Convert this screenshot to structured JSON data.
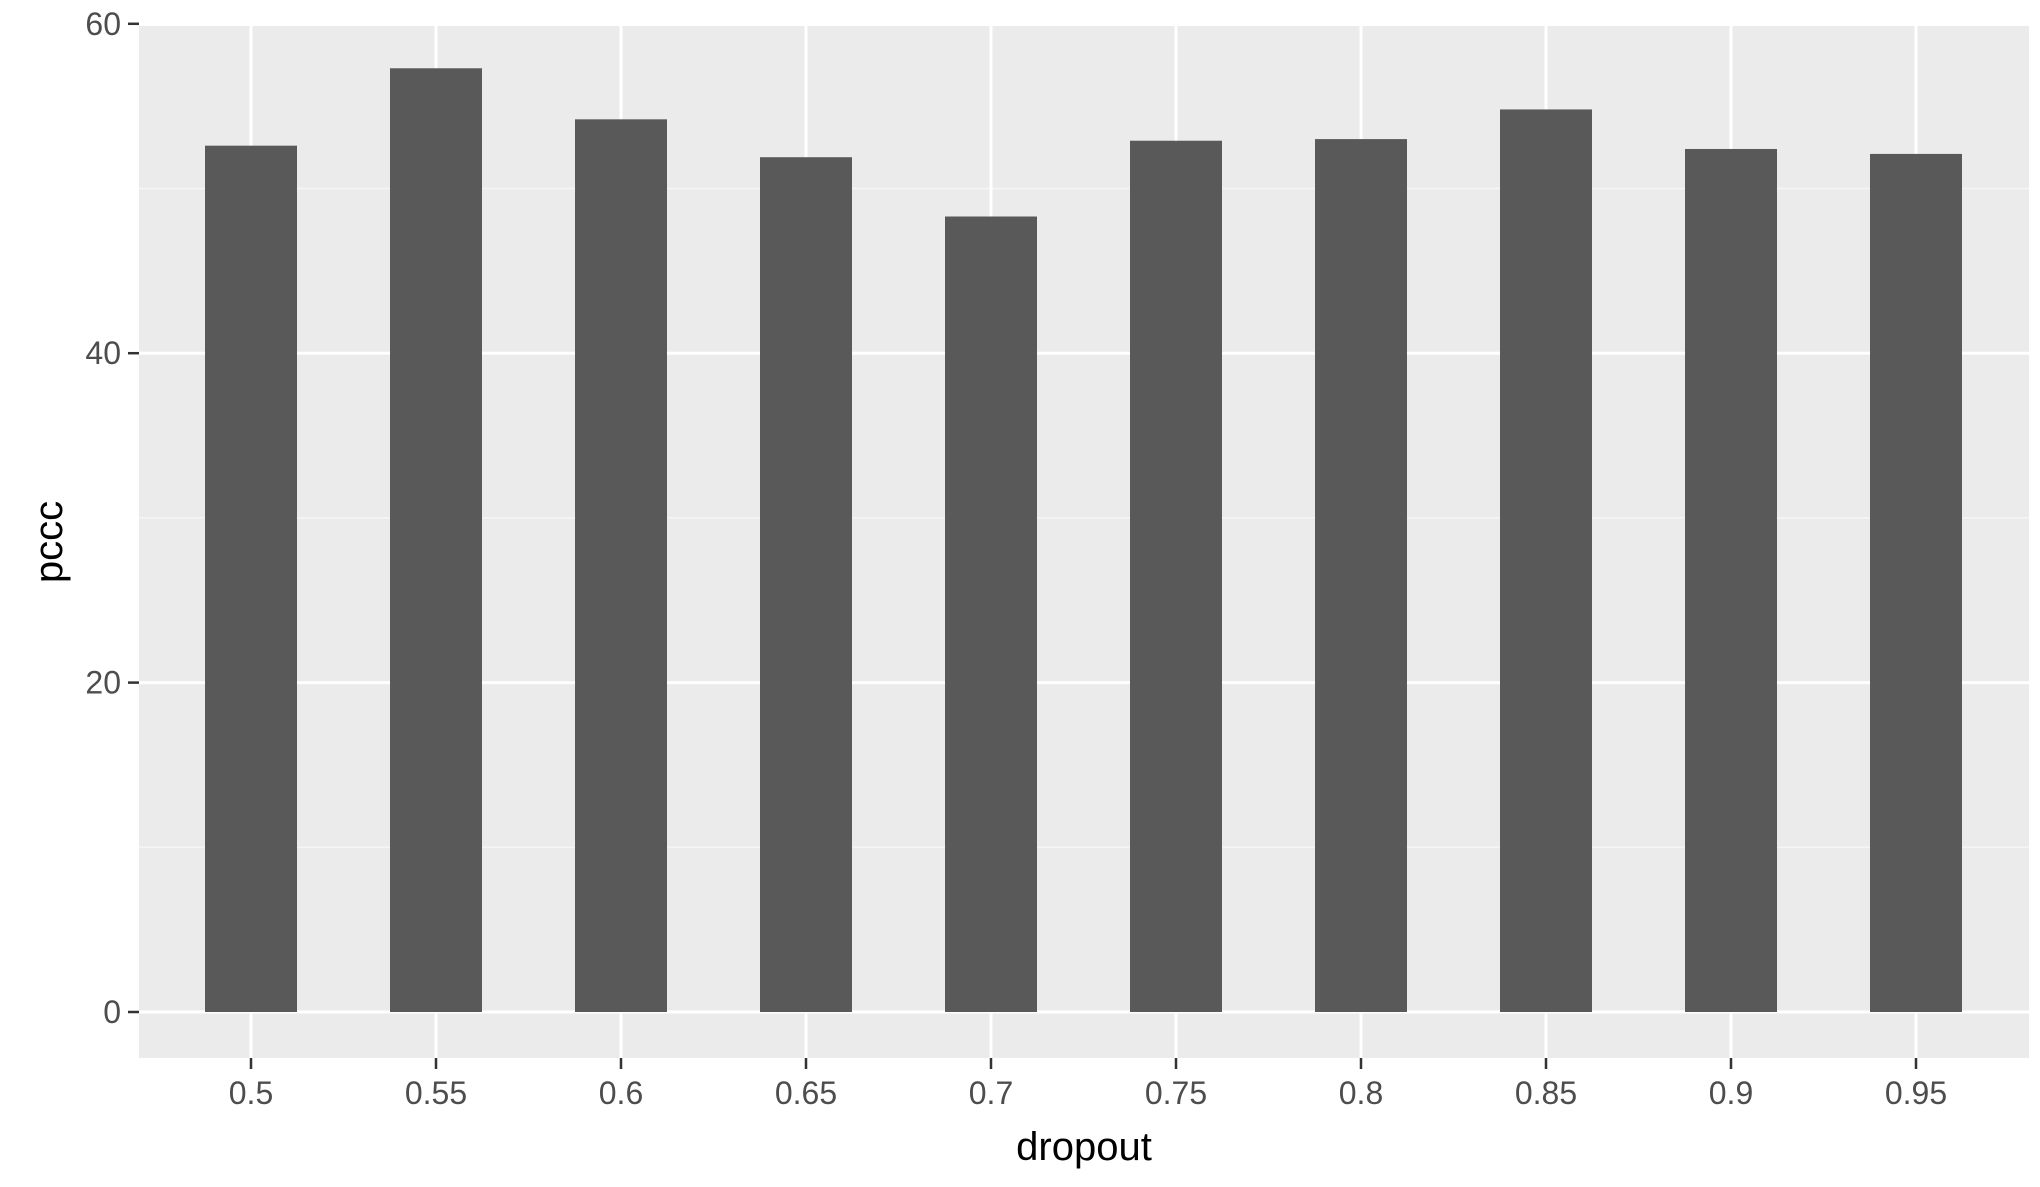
{
  "chart_data": {
    "type": "bar",
    "title": "",
    "xlabel": "dropout",
    "ylabel": "pccc",
    "categories": [
      "0.5",
      "0.55",
      "0.6",
      "0.65",
      "0.7",
      "0.75",
      "0.8",
      "0.85",
      "0.9",
      "0.95"
    ],
    "values": [
      52.6,
      57.3,
      54.2,
      51.9,
      48.3,
      52.9,
      53.0,
      54.8,
      52.4,
      52.1
    ],
    "ylim": [
      -4.7,
      60.2
    ],
    "y_ticks": [
      "0",
      "20",
      "40",
      "60"
    ],
    "grid": true,
    "legend": "none",
    "colors": {
      "bar": "#595959",
      "panel_background": "#ebebeb",
      "grid_major": "#ffffff",
      "grid_minor": "#f5f5f5"
    }
  }
}
